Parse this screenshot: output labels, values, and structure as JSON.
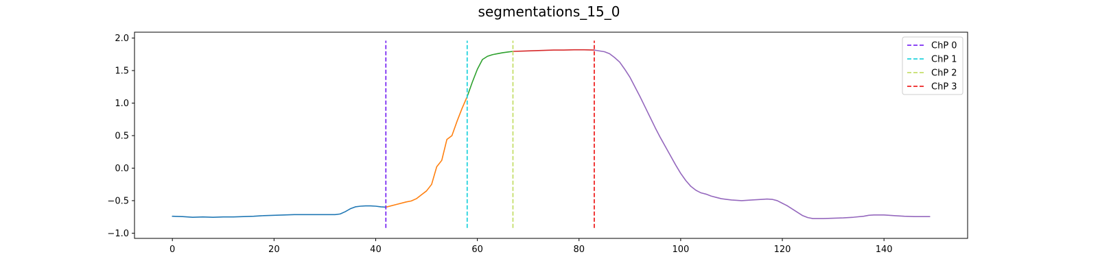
{
  "chart_data": {
    "type": "line",
    "title": "segmentations_15_0",
    "xlabel": "",
    "ylabel": "",
    "xlim": [
      -7.45,
      156.45
    ],
    "ylim": [
      -1.08,
      2.09
    ],
    "xticks": [
      0,
      20,
      40,
      60,
      80,
      100,
      120,
      140
    ],
    "yticks": [
      -1.0,
      -0.5,
      0.0,
      0.5,
      1.0,
      1.5,
      2.0
    ],
    "ytick_labels": [
      "−1.0",
      "−0.5",
      "0.0",
      "0.5",
      "1.0",
      "1.5",
      "2.0"
    ],
    "grid": false,
    "legend_position": "top-right",
    "series": [
      {
        "color": "#1f77b4",
        "points": [
          [
            0,
            -0.74
          ],
          [
            2,
            -0.745
          ],
          [
            4,
            -0.755
          ],
          [
            6,
            -0.75
          ],
          [
            8,
            -0.755
          ],
          [
            10,
            -0.75
          ],
          [
            12,
            -0.75
          ],
          [
            14,
            -0.745
          ],
          [
            16,
            -0.74
          ],
          [
            18,
            -0.73
          ],
          [
            20,
            -0.725
          ],
          [
            22,
            -0.72
          ],
          [
            24,
            -0.715
          ],
          [
            26,
            -0.715
          ],
          [
            28,
            -0.715
          ],
          [
            30,
            -0.715
          ],
          [
            32,
            -0.715
          ],
          [
            33,
            -0.705
          ],
          [
            34,
            -0.67
          ],
          [
            35,
            -0.625
          ],
          [
            36,
            -0.595
          ],
          [
            37,
            -0.585
          ],
          [
            38,
            -0.58
          ],
          [
            39,
            -0.58
          ],
          [
            40,
            -0.585
          ],
          [
            41,
            -0.595
          ],
          [
            42,
            -0.6
          ]
        ]
      },
      {
        "color": "#ff7f0e",
        "points": [
          [
            42,
            -0.6
          ],
          [
            44,
            -0.56
          ],
          [
            46,
            -0.52
          ],
          [
            47,
            -0.505
          ],
          [
            48,
            -0.47
          ],
          [
            49,
            -0.41
          ],
          [
            50,
            -0.35
          ],
          [
            51,
            -0.25
          ],
          [
            52,
            0.02
          ],
          [
            53,
            0.12
          ],
          [
            54,
            0.44
          ],
          [
            55,
            0.5
          ],
          [
            56,
            0.72
          ],
          [
            57,
            0.92
          ],
          [
            58,
            1.1
          ]
        ]
      },
      {
        "color": "#2ca02c",
        "points": [
          [
            58,
            1.1
          ],
          [
            59,
            1.32
          ],
          [
            60,
            1.52
          ],
          [
            61,
            1.67
          ],
          [
            62,
            1.72
          ],
          [
            63,
            1.745
          ],
          [
            64,
            1.76
          ],
          [
            65,
            1.775
          ],
          [
            66,
            1.785
          ],
          [
            67,
            1.795
          ]
        ]
      },
      {
        "color": "#d62728",
        "points": [
          [
            67,
            1.795
          ],
          [
            69,
            1.8
          ],
          [
            71,
            1.805
          ],
          [
            73,
            1.81
          ],
          [
            75,
            1.815
          ],
          [
            77,
            1.815
          ],
          [
            79,
            1.82
          ],
          [
            81,
            1.82
          ],
          [
            83,
            1.815
          ]
        ]
      },
      {
        "color": "#9467bd",
        "points": [
          [
            83,
            1.815
          ],
          [
            85,
            1.79
          ],
          [
            86,
            1.76
          ],
          [
            87,
            1.7
          ],
          [
            88,
            1.63
          ],
          [
            89,
            1.52
          ],
          [
            90,
            1.4
          ],
          [
            91,
            1.25
          ],
          [
            92,
            1.1
          ],
          [
            93,
            0.94
          ],
          [
            94,
            0.78
          ],
          [
            95,
            0.62
          ],
          [
            96,
            0.47
          ],
          [
            97,
            0.33
          ],
          [
            98,
            0.19
          ],
          [
            99,
            0.05
          ],
          [
            100,
            -0.08
          ],
          [
            101,
            -0.19
          ],
          [
            102,
            -0.28
          ],
          [
            103,
            -0.34
          ],
          [
            104,
            -0.38
          ],
          [
            105,
            -0.4
          ],
          [
            106,
            -0.43
          ],
          [
            107,
            -0.45
          ],
          [
            108,
            -0.47
          ],
          [
            109,
            -0.48
          ],
          [
            110,
            -0.49
          ],
          [
            111,
            -0.495
          ],
          [
            112,
            -0.5
          ],
          [
            114,
            -0.49
          ],
          [
            116,
            -0.48
          ],
          [
            117,
            -0.475
          ],
          [
            118,
            -0.48
          ],
          [
            119,
            -0.5
          ],
          [
            120,
            -0.54
          ],
          [
            121,
            -0.58
          ],
          [
            122,
            -0.63
          ],
          [
            123,
            -0.68
          ],
          [
            124,
            -0.73
          ],
          [
            125,
            -0.76
          ],
          [
            126,
            -0.775
          ],
          [
            128,
            -0.775
          ],
          [
            130,
            -0.77
          ],
          [
            132,
            -0.765
          ],
          [
            134,
            -0.755
          ],
          [
            136,
            -0.74
          ],
          [
            137,
            -0.725
          ],
          [
            138,
            -0.72
          ],
          [
            140,
            -0.72
          ],
          [
            142,
            -0.73
          ],
          [
            144,
            -0.74
          ],
          [
            146,
            -0.745
          ],
          [
            149,
            -0.745
          ]
        ]
      }
    ],
    "changepoints": [
      {
        "name": "ChP 0",
        "x": 42,
        "color": "#7b2cf2"
      },
      {
        "name": "ChP 1",
        "x": 58,
        "color": "#22d3dd"
      },
      {
        "name": "ChP 2",
        "x": 67,
        "color": "#c5de6a"
      },
      {
        "name": "ChP 3",
        "x": 83,
        "color": "#ee2222"
      }
    ],
    "changepoint_y_range": [
      -0.92,
      1.96
    ]
  }
}
